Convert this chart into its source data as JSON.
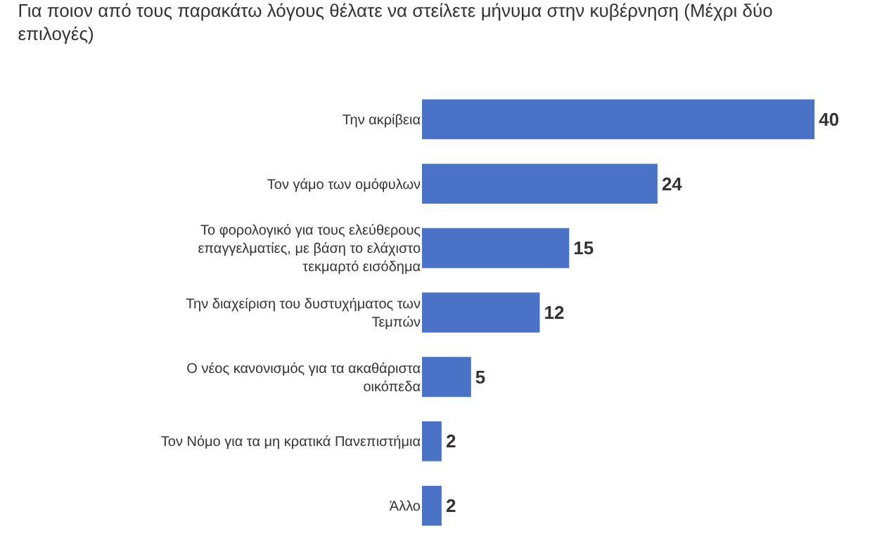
{
  "chart_data": {
    "type": "bar",
    "orientation": "horizontal",
    "title": "Για ποιον από τους παρακάτω λόγους θέλατε να στείλετε μήνυμα στην κυβέρνηση (Μέχρι δύο επιλογές)",
    "categories": [
      "Την ακρίβεια",
      "Τον γάμο των ομόφυλων",
      "Το φορολογικό για τους ελεύθερους επαγγελματίες, με βάση το ελάχιστο τεκμαρτό εισόδημα",
      "Την διαχείριση του δυστυχήματος των Τεμπών",
      "Ο νέος κανονισμός για τα ακαθάριστα οικόπεδα",
      "Τον Νόμο για τα μη κρατικά Πανεπιστήμια",
      "Άλλο"
    ],
    "values": [
      40,
      24,
      15,
      12,
      5,
      2,
      2
    ],
    "color": "#4a72c6",
    "data_labels": true
  }
}
